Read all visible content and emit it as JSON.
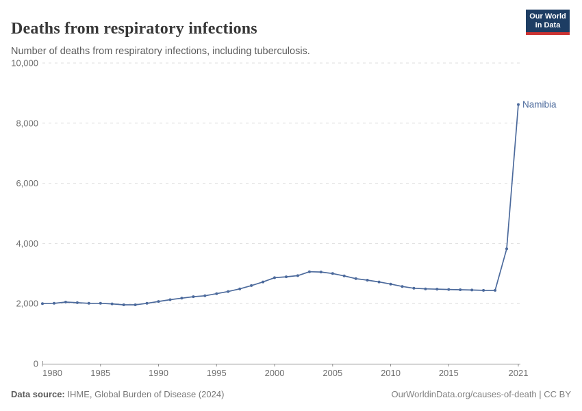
{
  "header": {
    "title": "Deaths from respiratory infections",
    "subtitle": "Number of deaths from respiratory infections, including tuberculosis.",
    "logo": {
      "line1": "Our World",
      "line2": "in Data",
      "bg_color": "#1d3d63",
      "accent_color": "#cc3332"
    }
  },
  "chart_data": {
    "type": "line",
    "title": "Deaths from respiratory infections",
    "subtitle": "Number of deaths from respiratory infections, including tuberculosis.",
    "xlabel": "",
    "ylabel": "",
    "xlim": [
      1980,
      2021
    ],
    "ylim": [
      0,
      10000
    ],
    "grid": "horizontal-dashed",
    "legend_position": "end-of-line-label",
    "x_ticks": [
      1980,
      1985,
      1990,
      1995,
      2000,
      2005,
      2010,
      2015,
      2021
    ],
    "y_ticks": [
      0,
      2000,
      4000,
      6000,
      8000,
      10000
    ],
    "y_tick_labels": [
      "0",
      "2,000",
      "4,000",
      "6,000",
      "8,000",
      "10,000"
    ],
    "series": [
      {
        "name": "Namibia",
        "color": "#4C6A9C",
        "x": [
          1980,
          1981,
          1982,
          1983,
          1984,
          1985,
          1986,
          1987,
          1988,
          1989,
          1990,
          1991,
          1992,
          1993,
          1994,
          1995,
          1996,
          1997,
          1998,
          1999,
          2000,
          2001,
          2002,
          2003,
          2004,
          2005,
          2006,
          2007,
          2008,
          2009,
          2010,
          2011,
          2012,
          2013,
          2014,
          2015,
          2016,
          2017,
          2018,
          2019,
          2020,
          2021
        ],
        "values": [
          2000,
          2010,
          2050,
          2030,
          2010,
          2010,
          1990,
          1960,
          1960,
          2010,
          2070,
          2130,
          2180,
          2230,
          2260,
          2330,
          2400,
          2490,
          2600,
          2720,
          2860,
          2890,
          2930,
          3060,
          3050,
          3000,
          2920,
          2830,
          2780,
          2720,
          2650,
          2570,
          2510,
          2490,
          2480,
          2470,
          2460,
          2450,
          2440,
          2440,
          3820,
          8620
        ]
      }
    ],
    "end_label": "Namibia"
  },
  "footer": {
    "source_label": "Data source:",
    "source_text": " IHME, Global Burden of Disease (2024)",
    "license_text": "OurWorldinData.org/causes-of-death | CC BY"
  },
  "colors": {
    "line": "#4C6A9C",
    "grid": "#dedede",
    "axis": "#8f8f8f",
    "tick_label": "#6e6e6e",
    "title": "#383838",
    "subtitle": "#5b5b5b"
  }
}
